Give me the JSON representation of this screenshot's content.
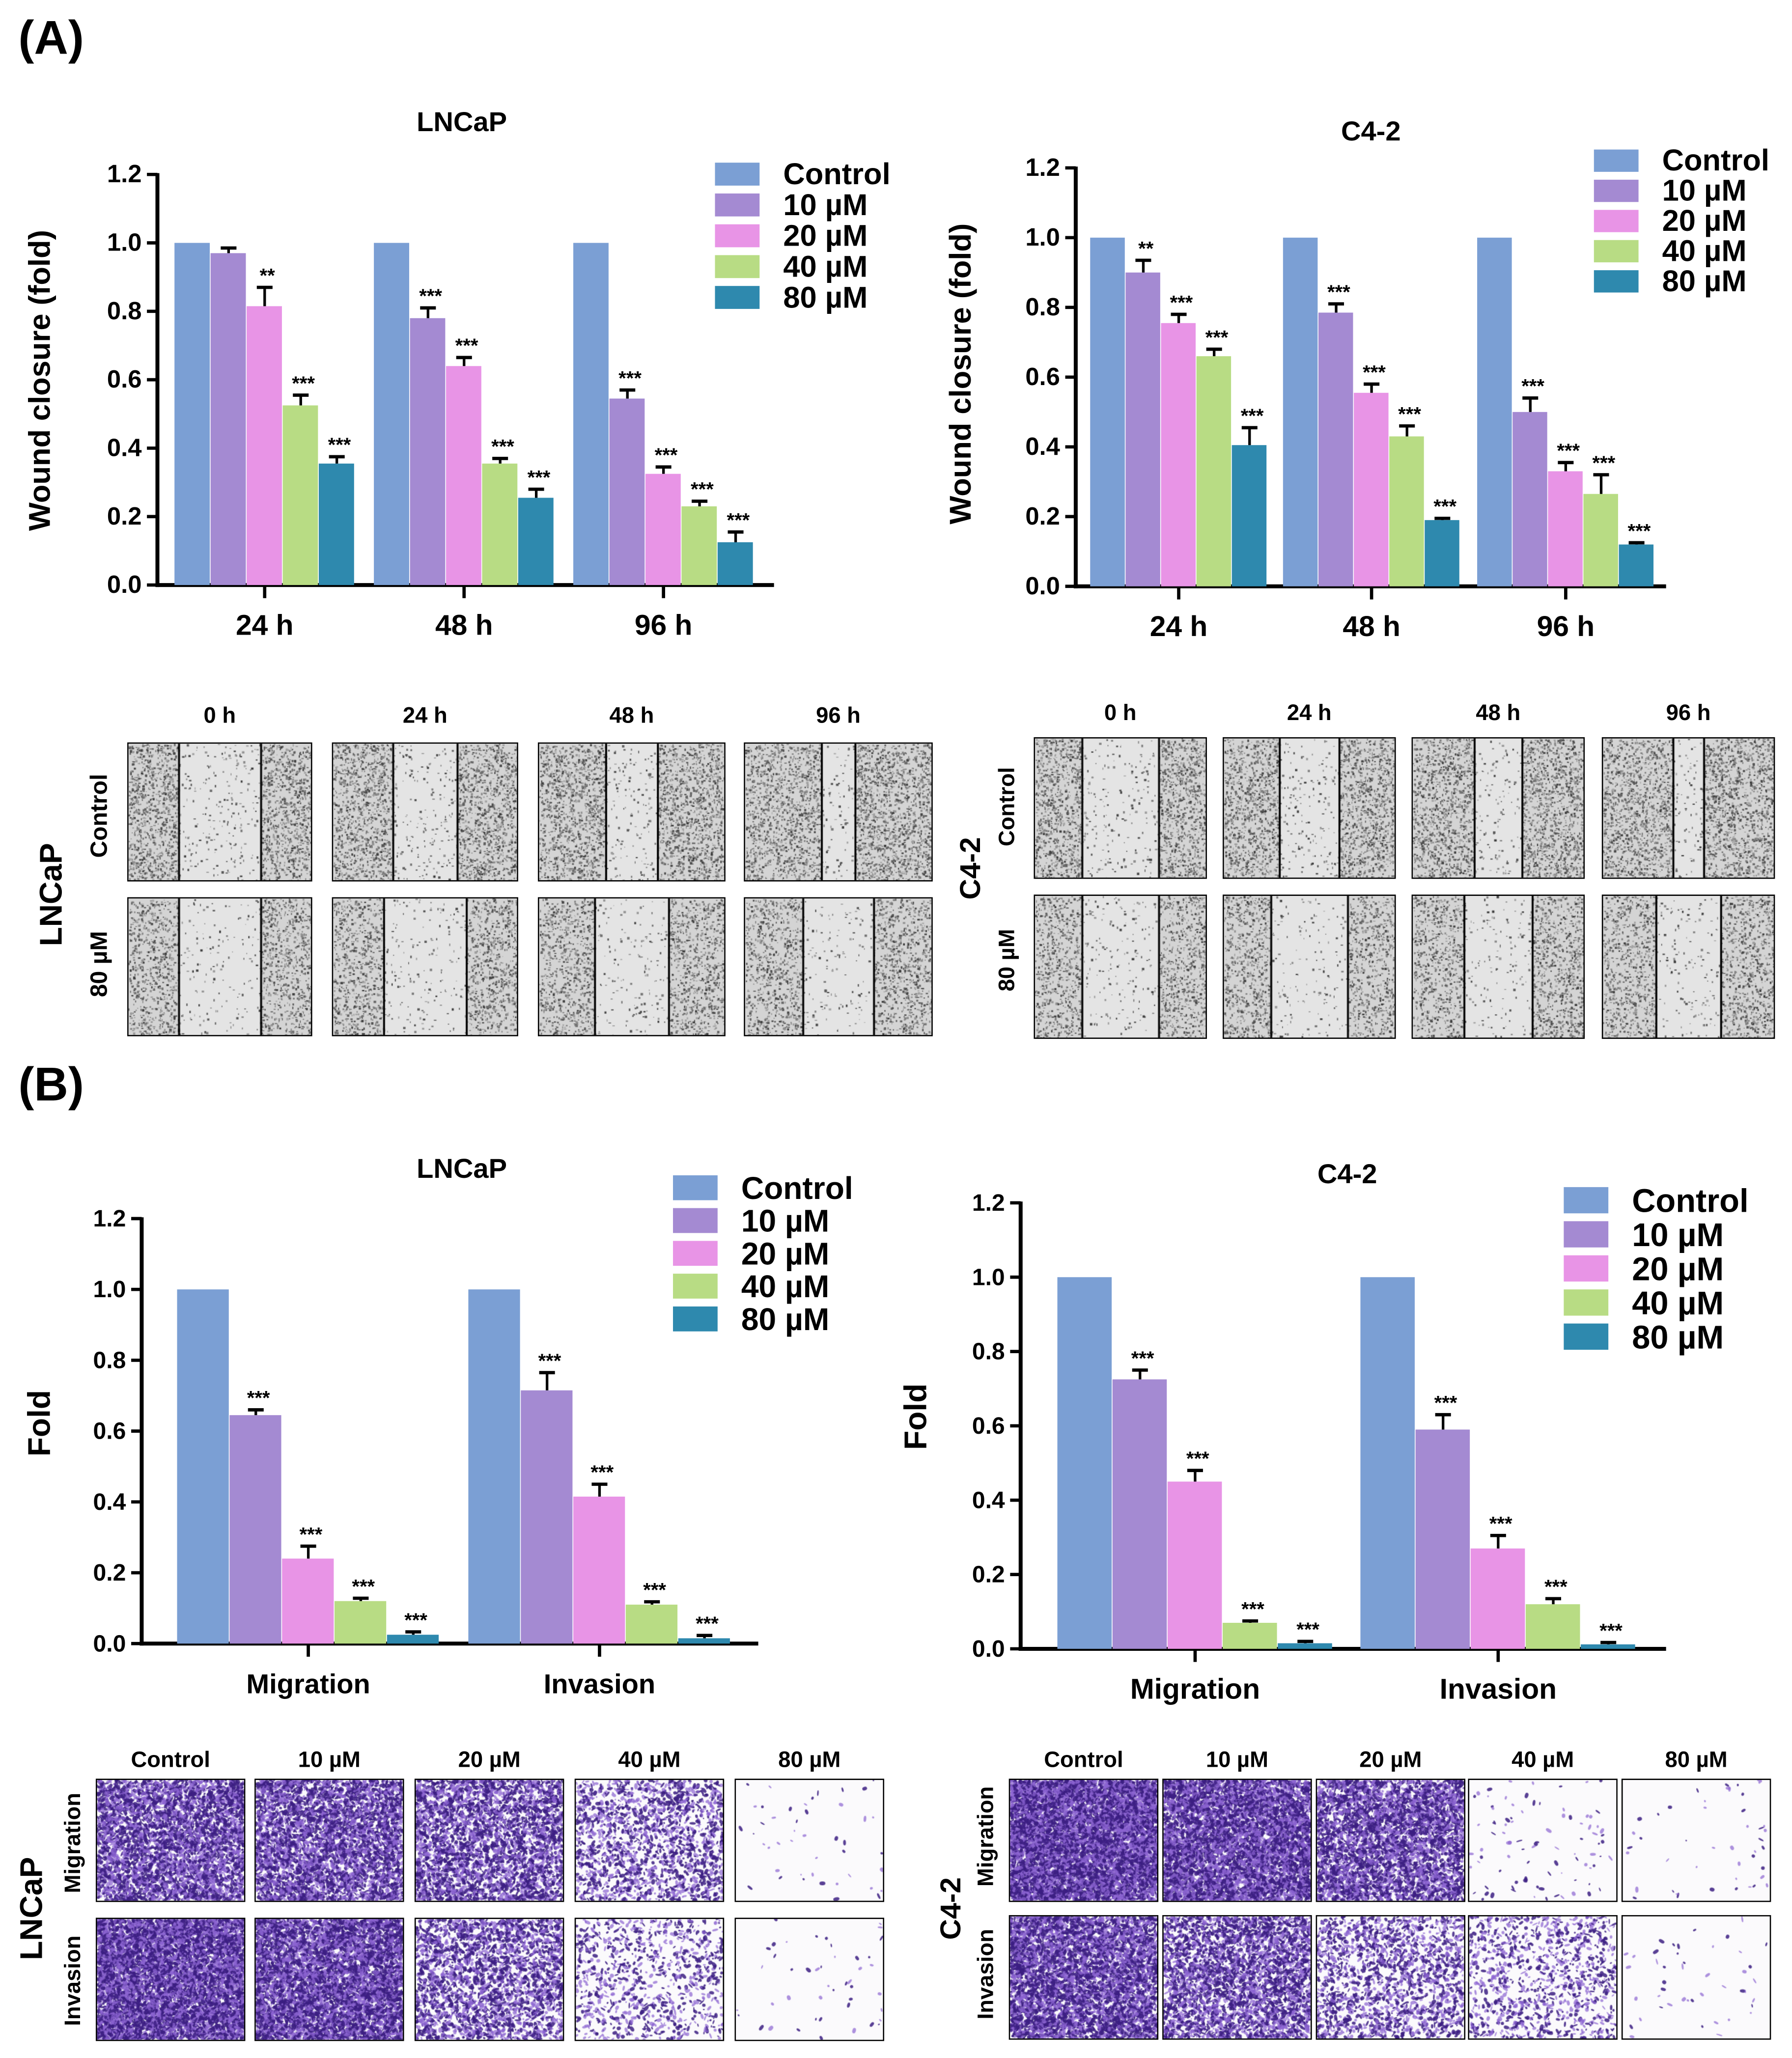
{
  "panels": {
    "a": "(A)",
    "b": "(B)"
  },
  "legend": [
    "Control",
    "10 µM",
    "20 µM",
    "40 µM",
    "80 µM"
  ],
  "colors": [
    "#7b9fd4",
    "#a48ad2",
    "#e894e6",
    "#b8dc84",
    "#2e89ae"
  ],
  "chart_data": [
    {
      "type": "bar",
      "title": "LNCaP",
      "ylabel": "Wound closure (fold)",
      "ylim": [
        0,
        1.2
      ],
      "yticks": [
        "0.0",
        "0.2",
        "0.4",
        "0.6",
        "0.8",
        "1.0",
        "1.2"
      ],
      "categories": [
        "24 h",
        "48 h",
        "96 h"
      ],
      "series": [
        {
          "name": "Control",
          "values": [
            1,
            1,
            1
          ],
          "errors": [
            0,
            0,
            0
          ],
          "sig": [
            "",
            "",
            ""
          ]
        },
        {
          "name": "10 µM",
          "values": [
            0.97,
            0.78,
            0.545
          ],
          "errors": [
            0.015,
            0.03,
            0.025
          ],
          "sig": [
            "",
            "***",
            "***"
          ]
        },
        {
          "name": "20 µM",
          "values": [
            0.815,
            0.64,
            0.325
          ],
          "errors": [
            0.055,
            0.025,
            0.02
          ],
          "sig": [
            "**",
            "***",
            "***"
          ]
        },
        {
          "name": "40 µM",
          "values": [
            0.525,
            0.355,
            0.23
          ],
          "errors": [
            0.03,
            0.015,
            0.015
          ],
          "sig": [
            "***",
            "***",
            "***"
          ]
        },
        {
          "name": "80 µM",
          "values": [
            0.355,
            0.255,
            0.125
          ],
          "errors": [
            0.02,
            0.025,
            0.03
          ],
          "sig": [
            "***",
            "***",
            "***"
          ]
        }
      ]
    },
    {
      "type": "bar",
      "title": "C4-2",
      "ylabel": "Wound closure (fold)",
      "ylim": [
        0,
        1.2
      ],
      "yticks": [
        "0.0",
        "0.2",
        "0.4",
        "0.6",
        "0.8",
        "1.0",
        "1.2"
      ],
      "categories": [
        "24 h",
        "48 h",
        "96 h"
      ],
      "series": [
        {
          "name": "Control",
          "values": [
            1,
            1,
            1
          ],
          "errors": [
            0,
            0,
            0
          ],
          "sig": [
            "",
            "",
            ""
          ]
        },
        {
          "name": "10 µM",
          "values": [
            0.9,
            0.785,
            0.5
          ],
          "errors": [
            0.035,
            0.025,
            0.04
          ],
          "sig": [
            "**",
            "***",
            "***"
          ]
        },
        {
          "name": "20 µM",
          "values": [
            0.755,
            0.555,
            0.33
          ],
          "errors": [
            0.025,
            0.025,
            0.025
          ],
          "sig": [
            "***",
            "***",
            "***"
          ]
        },
        {
          "name": "40 µM",
          "values": [
            0.66,
            0.43,
            0.265
          ],
          "errors": [
            0.02,
            0.03,
            0.055
          ],
          "sig": [
            "***",
            "***",
            "***"
          ]
        },
        {
          "name": "80 µM",
          "values": [
            0.405,
            0.19,
            0.12
          ],
          "errors": [
            0.05,
            0.005,
            0.005
          ],
          "sig": [
            "***",
            "***",
            "***"
          ]
        }
      ]
    },
    {
      "type": "bar",
      "title": "LNCaP",
      "ylabel": "Fold",
      "ylim": [
        0,
        1.2
      ],
      "yticks": [
        "0.0",
        "0.2",
        "0.4",
        "0.6",
        "0.8",
        "1.0",
        "1.2"
      ],
      "categories": [
        "Migration",
        "Invasion"
      ],
      "series": [
        {
          "name": "Control",
          "values": [
            1,
            1
          ],
          "errors": [
            0,
            0
          ],
          "sig": [
            "",
            ""
          ]
        },
        {
          "name": "10 µM",
          "values": [
            0.645,
            0.715
          ],
          "errors": [
            0.015,
            0.05
          ],
          "sig": [
            "***",
            "***"
          ]
        },
        {
          "name": "20 µM",
          "values": [
            0.24,
            0.415
          ],
          "errors": [
            0.035,
            0.035
          ],
          "sig": [
            "***",
            "***"
          ]
        },
        {
          "name": "40 µM",
          "values": [
            0.12,
            0.11
          ],
          "errors": [
            0.008,
            0.008
          ],
          "sig": [
            "***",
            "***"
          ]
        },
        {
          "name": "80 µM",
          "values": [
            0.025,
            0.015
          ],
          "errors": [
            0.008,
            0.008
          ],
          "sig": [
            "***",
            "***"
          ]
        }
      ]
    },
    {
      "type": "bar",
      "title": "C4-2",
      "ylabel": "Fold",
      "ylim": [
        0,
        1.2
      ],
      "yticks": [
        "0.0",
        "0.2",
        "0.4",
        "0.6",
        "0.8",
        "1.0",
        "1.2"
      ],
      "categories": [
        "Migration",
        "Invasion"
      ],
      "series": [
        {
          "name": "Control",
          "values": [
            1,
            1
          ],
          "errors": [
            0,
            0
          ],
          "sig": [
            "",
            ""
          ]
        },
        {
          "name": "10 µM",
          "values": [
            0.725,
            0.59
          ],
          "errors": [
            0.025,
            0.04
          ],
          "sig": [
            "***",
            "***"
          ]
        },
        {
          "name": "20 µM",
          "values": [
            0.45,
            0.27
          ],
          "errors": [
            0.03,
            0.035
          ],
          "sig": [
            "***",
            "***"
          ]
        },
        {
          "name": "40 µM",
          "values": [
            0.07,
            0.12
          ],
          "errors": [
            0.005,
            0.015
          ],
          "sig": [
            "***",
            "***"
          ]
        },
        {
          "name": "80 µM",
          "values": [
            0.015,
            0.012
          ],
          "errors": [
            0.005,
            0.005
          ],
          "sig": [
            "***",
            "***"
          ]
        }
      ]
    }
  ],
  "wound_images": {
    "times": [
      "0 h",
      "24 h",
      "48 h",
      "96 h"
    ],
    "lncap": {
      "cell_line": "LNCaP",
      "rows": [
        "Control",
        "80 µM"
      ]
    },
    "c42": {
      "cell_line": "C4-2",
      "rows": [
        "Control",
        "80 µM"
      ]
    }
  },
  "transwell_images": {
    "columns": [
      "Control",
      "10 µM",
      "20 µM",
      "40 µM",
      "80 µM"
    ],
    "lncap": {
      "cell_line": "LNCaP",
      "rows": [
        "Migration",
        "Invasion"
      ]
    },
    "c42": {
      "cell_line": "C4-2",
      "rows": [
        "Migration",
        "Invasion"
      ]
    }
  }
}
